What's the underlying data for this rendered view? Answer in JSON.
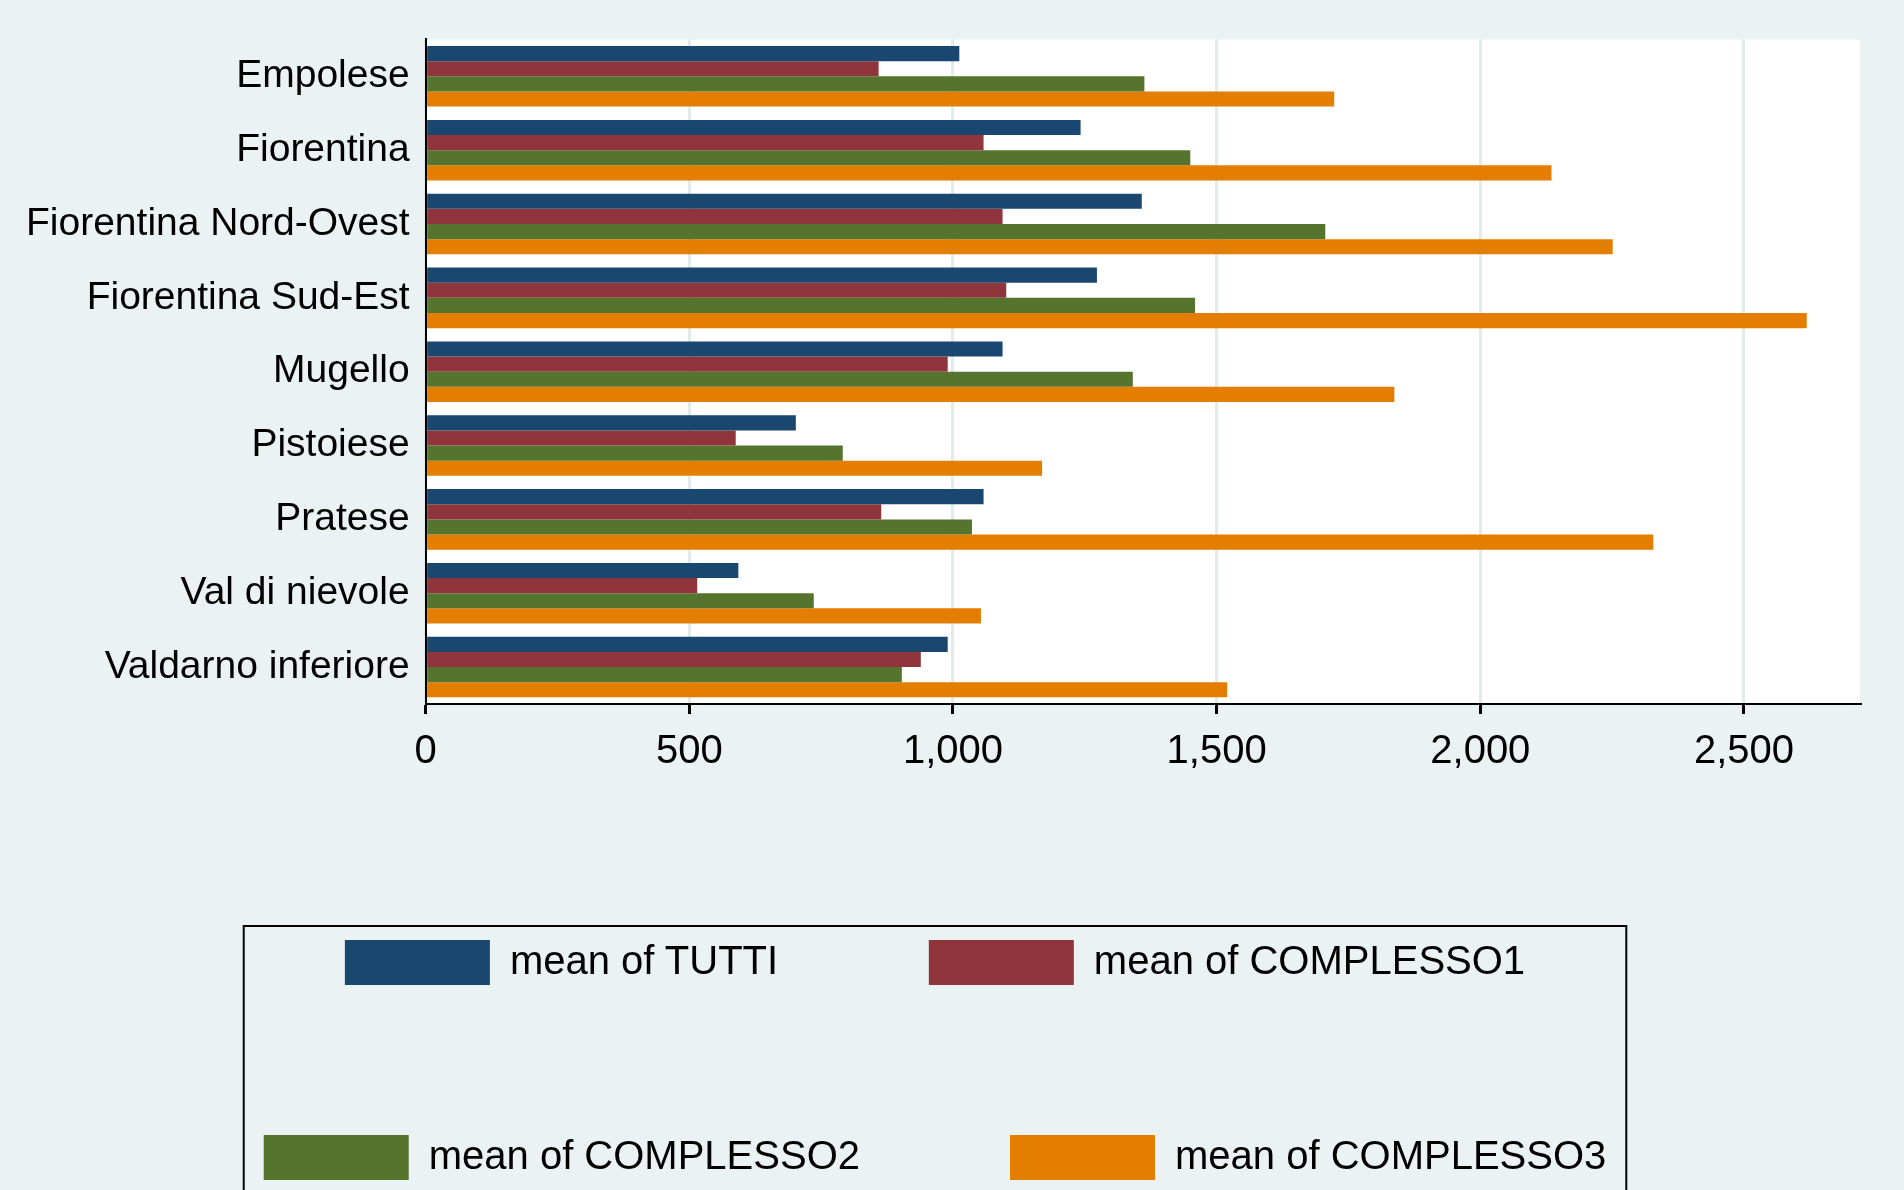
{
  "chart_data": {
    "type": "bar",
    "orientation": "horizontal",
    "categories": [
      "Empolese",
      "Fiorentina",
      "Fiorentina Nord-Ovest",
      "Fiorentina Sud-Est",
      "Mugello",
      "Pistoiese",
      "Pratese",
      "Val di nievole",
      "Valdarno inferiore"
    ],
    "series": [
      {
        "name": "mean of TUTTI",
        "color": "#1a476f",
        "values": [
          1012,
          1242,
          1358,
          1273,
          1094,
          702,
          1058,
          593,
          990
        ]
      },
      {
        "name": "mean of COMPLESSO1",
        "color": "#90353b",
        "values": [
          859,
          1058,
          1094,
          1101,
          990,
          588,
          864,
          515,
          939
        ]
      },
      {
        "name": "mean of COMPLESSO2",
        "color": "#55752f",
        "values": [
          1363,
          1450,
          1706,
          1459,
          1341,
          791,
          1036,
          736,
          903
        ]
      },
      {
        "name": "mean of COMPLESSO3",
        "color": "#e37e00",
        "values": [
          1723,
          2135,
          2251,
          2619,
          1837,
          1169,
          2328,
          1053,
          1520
        ]
      }
    ],
    "xlim": [
      0,
      2720
    ],
    "xticks": [
      0,
      {
        "value": 500,
        "label": "500"
      },
      {
        "value": 1000,
        "label": "1,000"
      },
      {
        "value": 1500,
        "label": "1,500"
      },
      {
        "value": 2000,
        "label": "2,000"
      },
      {
        "value": 2500,
        "label": "2,500"
      }
    ],
    "grid": "x",
    "legend": "bottom"
  }
}
